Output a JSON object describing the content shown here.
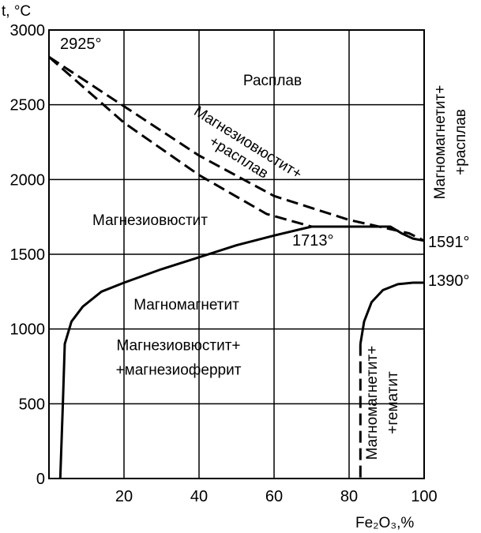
{
  "chart_data": {
    "type": "phase-diagram",
    "title": "",
    "xlabel": "Fe₂O₃,%",
    "ylabel": "t, °C",
    "xlim": [
      0,
      100
    ],
    "ylim": [
      0,
      3000
    ],
    "xticks": [
      20,
      40,
      60,
      80,
      100
    ],
    "yticks": [
      0,
      500,
      1000,
      1500,
      2000,
      2500,
      3000
    ],
    "grid": true,
    "annotations": [
      {
        "text": "2925°",
        "x": 0,
        "y": 2925
      },
      {
        "text": "1713°",
        "x": 70,
        "y": 1713
      },
      {
        "text": "1591°",
        "x": 100,
        "y": 1591
      },
      {
        "text": "1390°",
        "x": 100,
        "y": 1390
      }
    ],
    "regions": [
      {
        "label": "Расплав",
        "lines": [
          "Расплав"
        ]
      },
      {
        "label": "Магнезиовюстит+ +расплав",
        "lines": [
          "Магнезиовюстит+",
          "+расплав"
        ]
      },
      {
        "label": "Магнезиовюстит",
        "lines": [
          "Магнезиовюстит"
        ]
      },
      {
        "label": "Магномагнетит",
        "lines": [
          "Магномагнетит"
        ]
      },
      {
        "label": "Магнезиовюстит+ +магнезиоферрит",
        "lines": [
          "Магнезиовюстит+",
          "+магнезиоферрит"
        ]
      },
      {
        "label": "Магномагнетит+ +расплав",
        "lines": [
          "Магномагнетит+",
          "+расплав"
        ]
      },
      {
        "label": "Магномагнетит+ +гематит",
        "lines": [
          "Магномагнетит+",
          "+гематит"
        ]
      }
    ],
    "series": [
      {
        "style": "dashed",
        "points": [
          [
            0,
            2820
          ],
          [
            20,
            2490
          ],
          [
            40,
            2160
          ],
          [
            60,
            1890
          ],
          [
            80,
            1730
          ],
          [
            96,
            1640
          ],
          [
            100,
            1591
          ]
        ]
      },
      {
        "style": "dashed",
        "points": [
          [
            0,
            2820
          ],
          [
            20,
            2380
          ],
          [
            40,
            2030
          ],
          [
            58,
            1770
          ],
          [
            70,
            1685
          ]
        ]
      },
      {
        "style": "solid",
        "points": [
          [
            70,
            1685
          ],
          [
            91,
            1685
          ],
          [
            94,
            1640
          ],
          [
            97,
            1605
          ],
          [
            100,
            1591
          ]
        ]
      },
      {
        "style": "solid",
        "points": [
          [
            3,
            0
          ],
          [
            3.7,
            500
          ],
          [
            4.2,
            900
          ],
          [
            6,
            1050
          ],
          [
            9,
            1150
          ],
          [
            14,
            1250
          ],
          [
            20,
            1310
          ],
          [
            30,
            1400
          ],
          [
            40,
            1480
          ],
          [
            50,
            1560
          ],
          [
            60,
            1625
          ],
          [
            70,
            1685
          ]
        ]
      },
      {
        "style": "solid",
        "points": [
          [
            83,
            900
          ],
          [
            84,
            1050
          ],
          [
            86,
            1180
          ],
          [
            89,
            1260
          ],
          [
            93,
            1300
          ],
          [
            97,
            1310
          ],
          [
            100,
            1310
          ]
        ]
      },
      {
        "style": "dashed",
        "points": [
          [
            83,
            900
          ],
          [
            83,
            400
          ],
          [
            83,
            0
          ]
        ]
      }
    ]
  }
}
